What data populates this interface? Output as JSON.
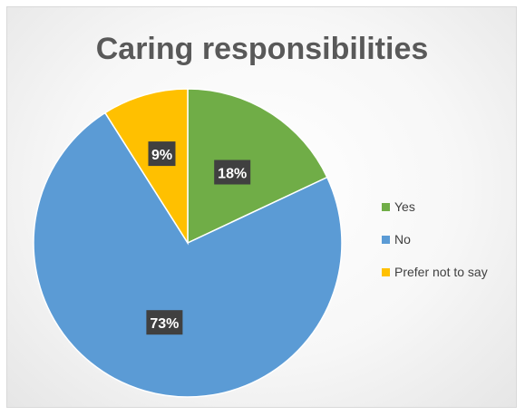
{
  "chart_data": {
    "type": "pie",
    "title": "Caring responsibilities",
    "categories": [
      "Yes",
      "No",
      "Prefer not to say"
    ],
    "values": [
      18,
      73,
      9
    ],
    "labels": [
      "18%",
      "73%",
      "9%"
    ],
    "colors": [
      "#70ad47",
      "#5b9bd5",
      "#ffc000"
    ],
    "legend_position": "right"
  }
}
